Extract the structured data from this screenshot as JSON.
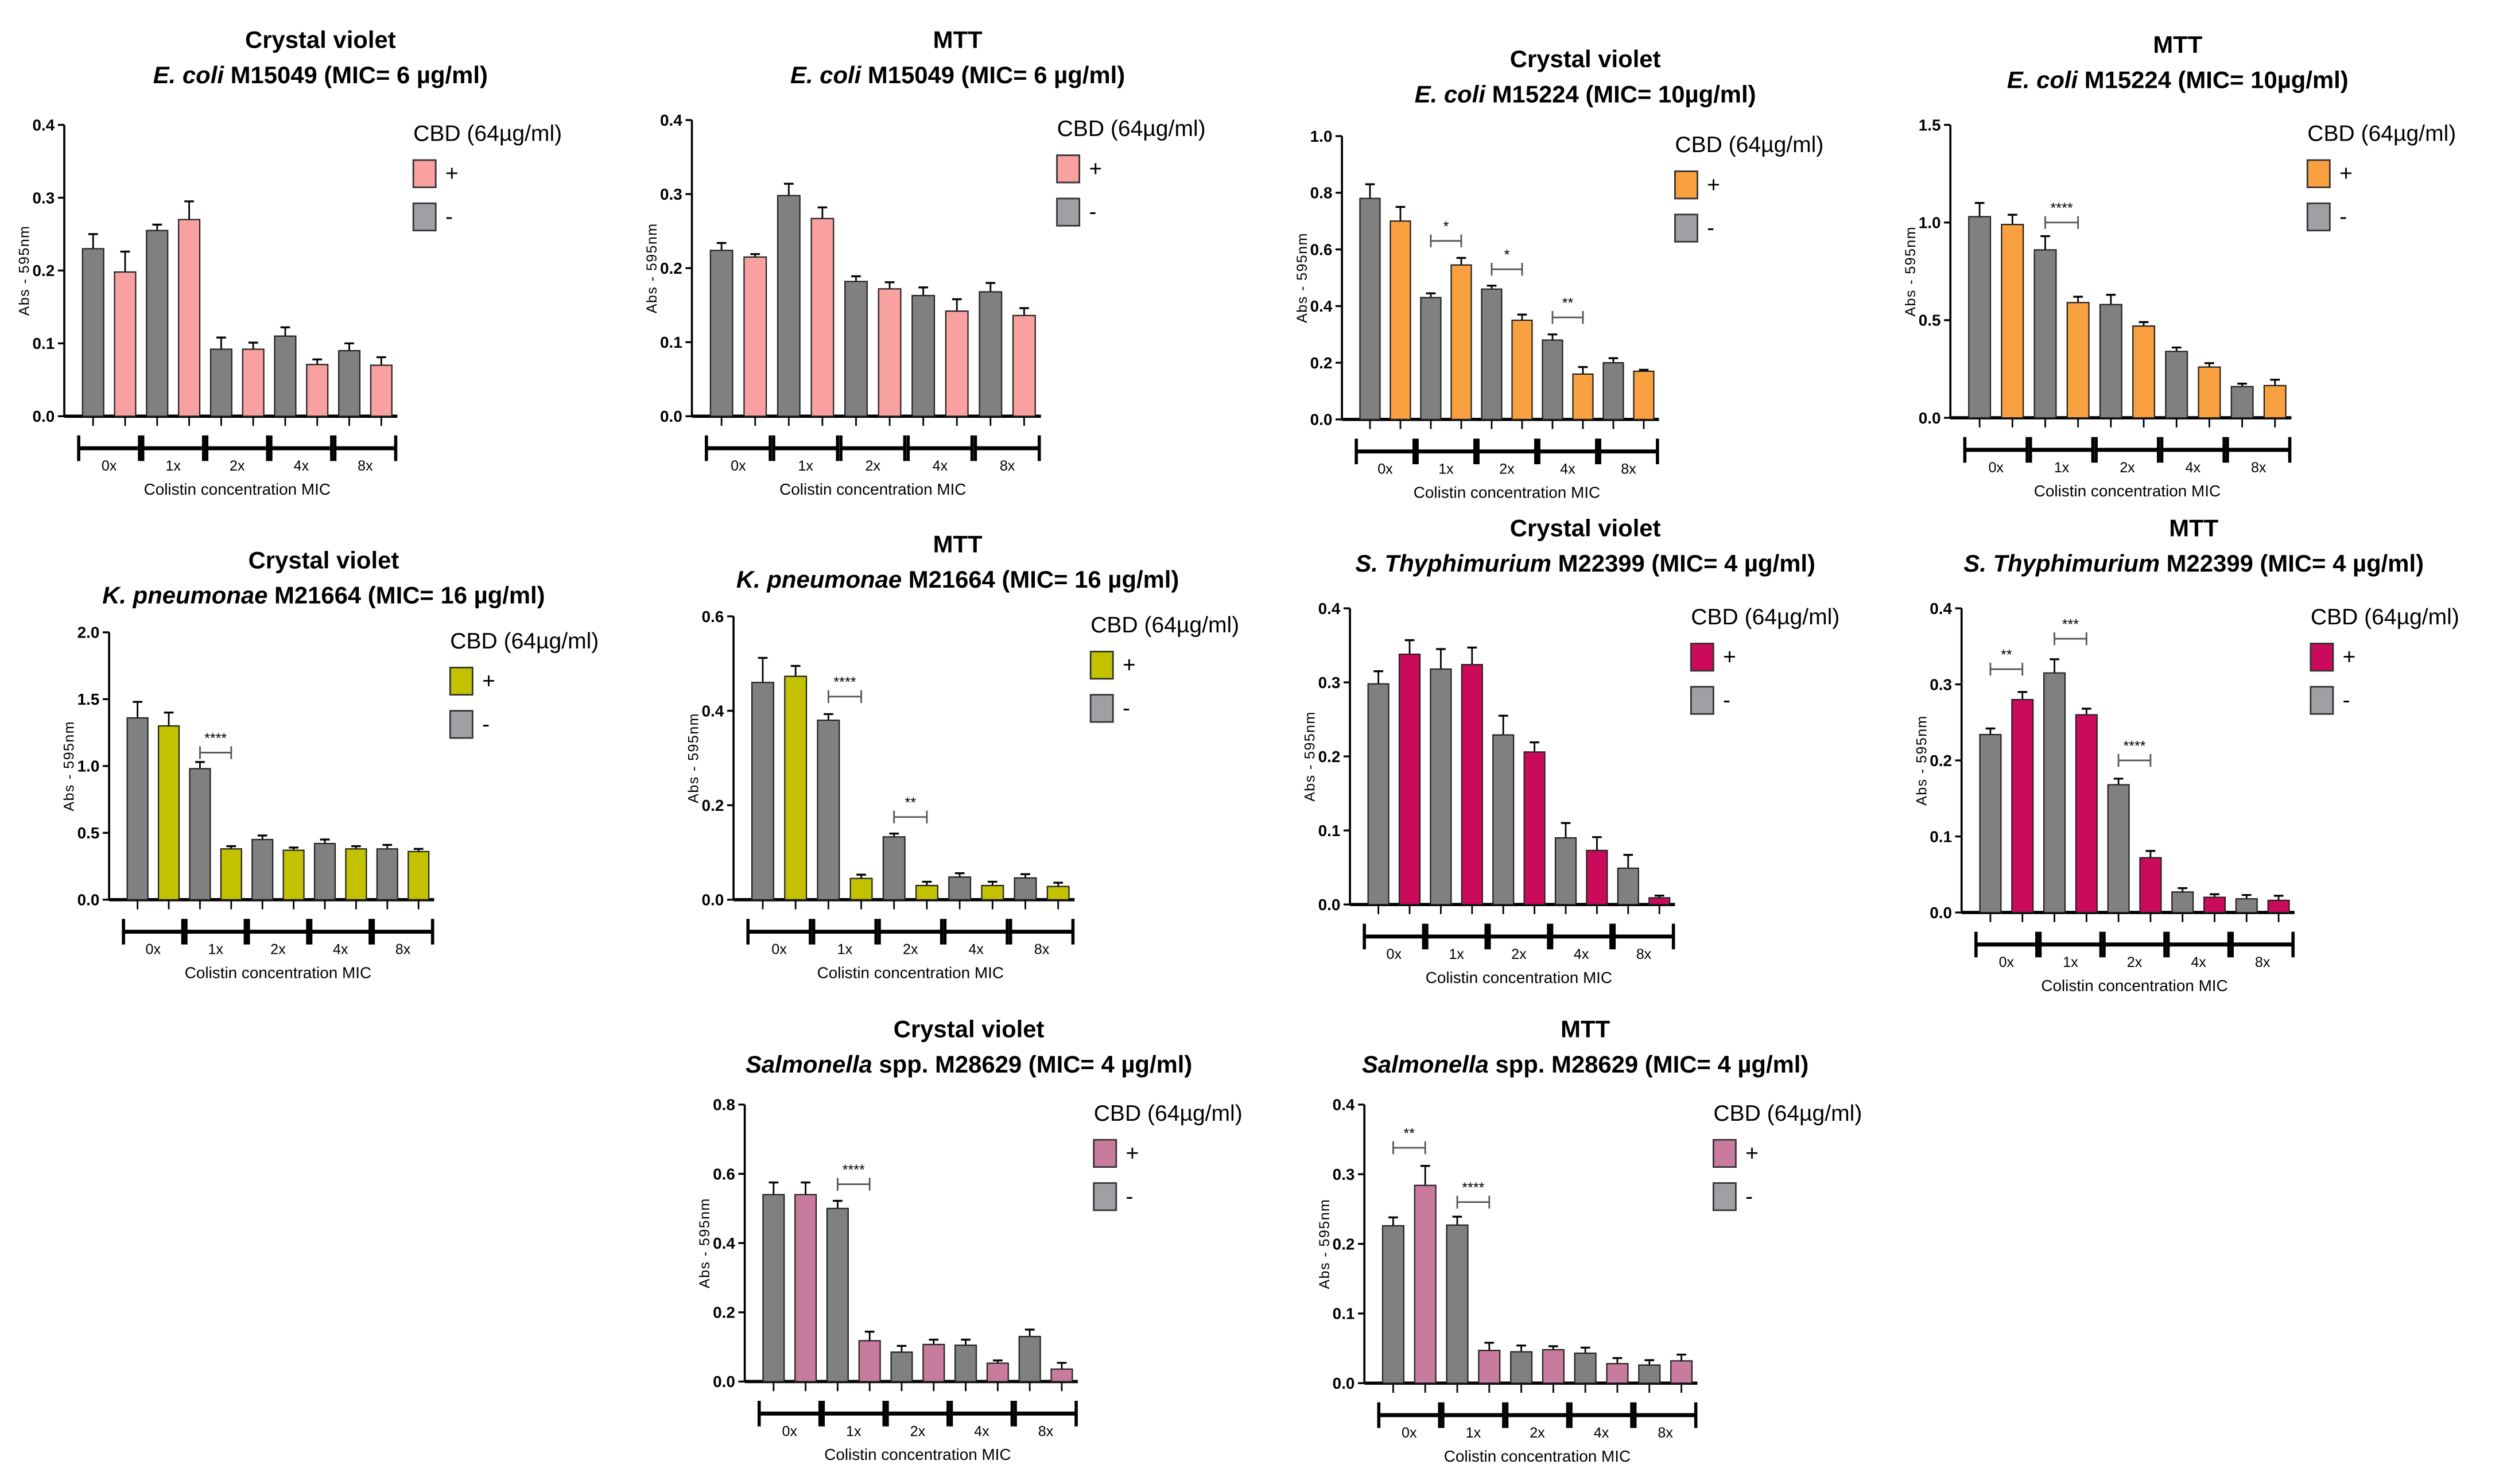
{
  "common": {
    "ylabel": "Abs - 595nm",
    "xlabel": "Colistin concentration MIC",
    "legend_title": "CBD (64µg/ml)",
    "bar_color_minus": "#808080",
    "legend_minus_color": "#A0A0A4"
  },
  "chart_data": [
    {
      "type": "bar",
      "title": "Crystal violet",
      "subtitle_italic": "E. coli",
      "subtitle_rest": " M15049 (MIC= 6 µg/ml)",
      "categories": [
        "0x",
        "1x",
        "2x",
        "4x",
        "8x"
      ],
      "ylim": [
        0,
        0.4
      ],
      "yticks": [
        "0.0",
        "0.1",
        "0.2",
        "0.3",
        "0.4"
      ],
      "color": "#F9A0A0",
      "series": [
        {
          "name": "-",
          "values": [
            0.23,
            0.255,
            0.092,
            0.11,
            0.09
          ],
          "errors": [
            0.02,
            0.008,
            0.016,
            0.012,
            0.01
          ]
        },
        {
          "name": "+",
          "values": [
            0.198,
            0.27,
            0.092,
            0.071,
            0.07
          ],
          "errors": [
            0.028,
            0.025,
            0.009,
            0.007,
            0.011
          ]
        }
      ],
      "significance": []
    },
    {
      "type": "bar",
      "title": "MTT",
      "subtitle_italic": "E. coli",
      "subtitle_rest": " M15049 (MIC= 6 µg/ml)",
      "categories": [
        "0x",
        "1x",
        "2x",
        "4x",
        "8x"
      ],
      "ylim": [
        0,
        0.4
      ],
      "yticks": [
        "0.0",
        "0.1",
        "0.2",
        "0.3",
        "0.4"
      ],
      "color": "#F9A0A0",
      "series": [
        {
          "name": "-",
          "values": [
            0.224,
            0.298,
            0.182,
            0.163,
            0.168
          ],
          "errors": [
            0.01,
            0.016,
            0.007,
            0.011,
            0.012
          ]
        },
        {
          "name": "+",
          "values": [
            0.215,
            0.267,
            0.172,
            0.142,
            0.136
          ],
          "errors": [
            0.004,
            0.015,
            0.009,
            0.016,
            0.01
          ]
        }
      ],
      "significance": []
    },
    {
      "type": "bar",
      "title": "Crystal violet",
      "subtitle_italic": "E. coli",
      "subtitle_rest": " M15224 (MIC= 10µg/ml)",
      "categories": [
        "0x",
        "1x",
        "2x",
        "4x",
        "8x"
      ],
      "ylim": [
        0,
        1.0
      ],
      "yticks": [
        "0.0",
        "0.2",
        "0.4",
        "0.6",
        "0.8",
        "1.0"
      ],
      "color": "#F9A040",
      "series": [
        {
          "name": "-",
          "values": [
            0.78,
            0.43,
            0.46,
            0.28,
            0.2
          ],
          "errors": [
            0.05,
            0.015,
            0.012,
            0.02,
            0.016
          ]
        },
        {
          "name": "+",
          "values": [
            0.7,
            0.545,
            0.35,
            0.16,
            0.17
          ],
          "errors": [
            0.05,
            0.025,
            0.02,
            0.025,
            0.005
          ]
        }
      ],
      "significance": [
        {
          "group": "1x",
          "label": "*",
          "y": 0.63
        },
        {
          "group": "2x",
          "label": "*",
          "y": 0.53
        },
        {
          "group": "4x",
          "label": "**",
          "y": 0.36
        }
      ]
    },
    {
      "type": "bar",
      "title": "MTT",
      "subtitle_italic": "E. coli",
      "subtitle_rest": " M15224 (MIC= 10µg/ml)",
      "categories": [
        "0x",
        "1x",
        "2x",
        "4x",
        "8x"
      ],
      "ylim": [
        0,
        1.5
      ],
      "yticks": [
        "0.0",
        "0.5",
        "1.0",
        "1.5"
      ],
      "color": "#F9A040",
      "series": [
        {
          "name": "-",
          "values": [
            1.03,
            0.86,
            0.58,
            0.34,
            0.16
          ],
          "errors": [
            0.07,
            0.07,
            0.05,
            0.02,
            0.015
          ]
        },
        {
          "name": "+",
          "values": [
            0.99,
            0.59,
            0.47,
            0.26,
            0.165
          ],
          "errors": [
            0.05,
            0.03,
            0.02,
            0.02,
            0.03
          ]
        }
      ],
      "significance": [
        {
          "group": "1x",
          "label": "****",
          "y": 1.0
        }
      ]
    },
    {
      "type": "bar",
      "title": "Crystal violet",
      "subtitle_italic": "K. pneumonae",
      "subtitle_rest": " M21664 (MIC= 16 µg/ml)",
      "categories": [
        "0x",
        "1x",
        "2x",
        "4x",
        "8x"
      ],
      "ylim": [
        0,
        2.0
      ],
      "yticks": [
        "0.0",
        "0.5",
        "1.0",
        "1.5",
        "2.0"
      ],
      "color": "#C3C200",
      "series": [
        {
          "name": "-",
          "values": [
            1.36,
            0.98,
            0.45,
            0.42,
            0.38
          ],
          "errors": [
            0.12,
            0.05,
            0.03,
            0.03,
            0.03
          ]
        },
        {
          "name": "+",
          "values": [
            1.3,
            0.38,
            0.37,
            0.38,
            0.36
          ],
          "errors": [
            0.1,
            0.02,
            0.02,
            0.02,
            0.02
          ]
        }
      ],
      "significance": [
        {
          "group": "1x",
          "label": "****",
          "y": 1.1
        }
      ]
    },
    {
      "type": "bar",
      "title": "MTT",
      "subtitle_italic": "K. pneumonae",
      "subtitle_rest": " M21664 (MIC= 16 µg/ml)",
      "categories": [
        "0x",
        "1x",
        "2x",
        "4x",
        "8x"
      ],
      "ylim": [
        0,
        0.6
      ],
      "yticks": [
        "0.0",
        "0.2",
        "0.4",
        "0.6"
      ],
      "color": "#C3C200",
      "series": [
        {
          "name": "-",
          "values": [
            0.46,
            0.38,
            0.133,
            0.048,
            0.046
          ],
          "errors": [
            0.052,
            0.013,
            0.007,
            0.008,
            0.008
          ]
        },
        {
          "name": "+",
          "values": [
            0.473,
            0.045,
            0.03,
            0.03,
            0.028
          ],
          "errors": [
            0.022,
            0.008,
            0.008,
            0.008,
            0.008
          ]
        }
      ],
      "significance": [
        {
          "group": "1x",
          "label": "****",
          "y": 0.43
        },
        {
          "group": "2x",
          "label": "**",
          "y": 0.175
        }
      ]
    },
    {
      "type": "bar",
      "title": "Crystal violet",
      "subtitle_italic": "S. Thyphimurium",
      "subtitle_rest": " M22399 (MIC= 4 µg/ml)",
      "categories": [
        "0x",
        "1x",
        "2x",
        "4x",
        "8x"
      ],
      "ylim": [
        0,
        0.4
      ],
      "yticks": [
        "0.0",
        "0.1",
        "0.2",
        "0.3",
        "0.4"
      ],
      "color": "#CC0A5C",
      "series": [
        {
          "name": "-",
          "values": [
            0.298,
            0.318,
            0.229,
            0.09,
            0.049
          ],
          "errors": [
            0.017,
            0.027,
            0.026,
            0.02,
            0.018
          ]
        },
        {
          "name": "+",
          "values": [
            0.338,
            0.324,
            0.206,
            0.073,
            0.009
          ],
          "errors": [
            0.019,
            0.023,
            0.013,
            0.018,
            0.003
          ]
        }
      ],
      "significance": []
    },
    {
      "type": "bar",
      "title": "MTT",
      "subtitle_italic": "S. Thyphimurium",
      "subtitle_rest": " M22399 (MIC= 4 µg/ml)",
      "categories": [
        "0x",
        "1x",
        "2x",
        "4x",
        "8x"
      ],
      "ylim": [
        0,
        0.4
      ],
      "yticks": [
        "0.0",
        "0.1",
        "0.2",
        "0.3",
        "0.4"
      ],
      "color": "#CC0A5C",
      "series": [
        {
          "name": "-",
          "values": [
            0.234,
            0.315,
            0.168,
            0.027,
            0.018
          ],
          "errors": [
            0.008,
            0.018,
            0.008,
            0.005,
            0.005
          ]
        },
        {
          "name": "+",
          "values": [
            0.28,
            0.26,
            0.072,
            0.02,
            0.016
          ],
          "errors": [
            0.01,
            0.008,
            0.009,
            0.004,
            0.006
          ]
        }
      ],
      "significance": [
        {
          "group": "0x",
          "label": "**",
          "y": 0.32
        },
        {
          "group": "1x",
          "label": "***",
          "y": 0.36
        },
        {
          "group": "2x",
          "label": "****",
          "y": 0.2
        }
      ]
    },
    {
      "type": "bar",
      "title": "Crystal violet",
      "subtitle_italic": "Salmonella",
      "subtitle_rest": " spp. M28629 (MIC= 4 µg/ml)",
      "categories": [
        "0x",
        "1x",
        "2x",
        "4x",
        "8x"
      ],
      "ylim": [
        0,
        0.8
      ],
      "yticks": [
        "0.0",
        "0.2",
        "0.4",
        "0.6",
        "0.8"
      ],
      "color": "#C97B9E",
      "series": [
        {
          "name": "-",
          "values": [
            0.54,
            0.5,
            0.085,
            0.105,
            0.13
          ],
          "errors": [
            0.035,
            0.022,
            0.018,
            0.016,
            0.02
          ]
        },
        {
          "name": "+",
          "values": [
            0.54,
            0.118,
            0.107,
            0.053,
            0.036
          ],
          "errors": [
            0.035,
            0.026,
            0.014,
            0.008,
            0.018
          ]
        }
      ],
      "significance": [
        {
          "group": "1x",
          "label": "****",
          "y": 0.57
        }
      ]
    },
    {
      "type": "bar",
      "title": "MTT",
      "subtitle_italic": "Salmonella",
      "subtitle_rest": " spp. M28629 (MIC= 4 µg/ml)",
      "categories": [
        "0x",
        "1x",
        "2x",
        "4x",
        "8x"
      ],
      "ylim": [
        0,
        0.4
      ],
      "yticks": [
        "0.0",
        "0.1",
        "0.2",
        "0.3",
        "0.4"
      ],
      "color": "#C97B9E",
      "series": [
        {
          "name": "-",
          "values": [
            0.226,
            0.227,
            0.045,
            0.043,
            0.026
          ],
          "errors": [
            0.012,
            0.012,
            0.009,
            0.008,
            0.007
          ]
        },
        {
          "name": "+",
          "values": [
            0.284,
            0.047,
            0.048,
            0.028,
            0.032
          ],
          "errors": [
            0.028,
            0.011,
            0.005,
            0.008,
            0.009
          ]
        }
      ],
      "significance": [
        {
          "group": "0x",
          "label": "**",
          "y": 0.338
        },
        {
          "group": "1x",
          "label": "****",
          "y": 0.26
        }
      ]
    }
  ]
}
